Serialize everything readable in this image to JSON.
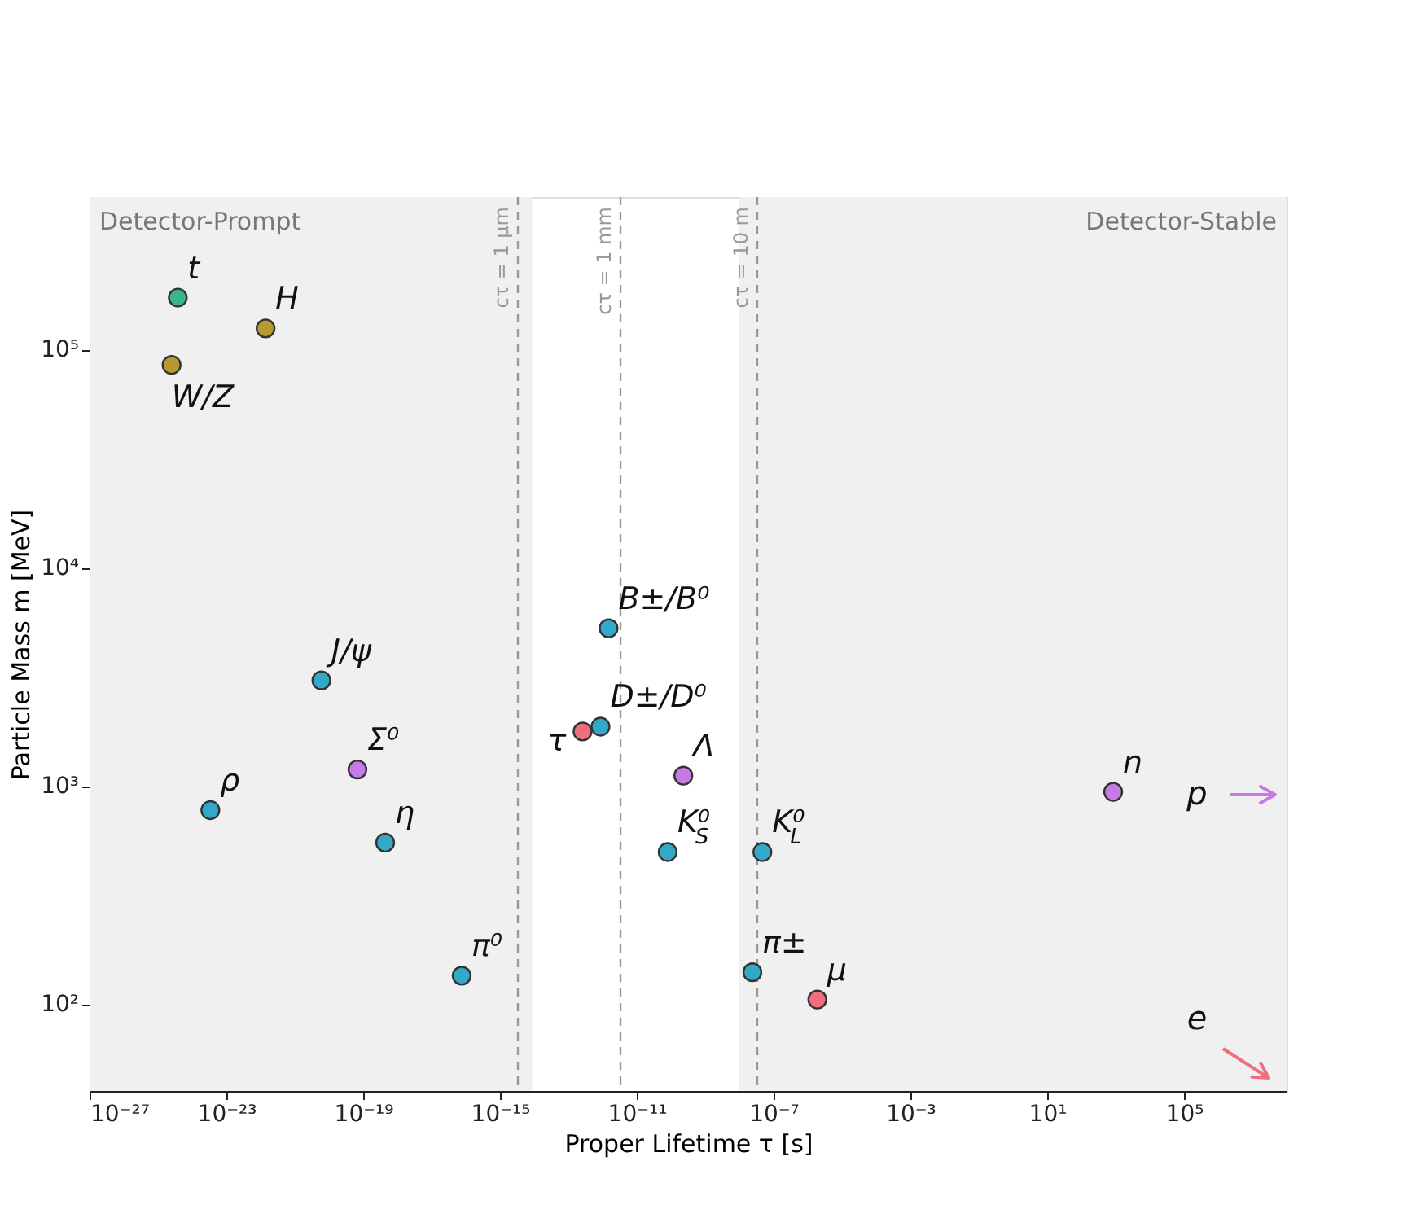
{
  "chart_data": {
    "type": "scatter",
    "xlabel": "Proper Lifetime τ [s]",
    "ylabel": "Particle Mass m [MeV]",
    "log": "xy",
    "xlim": [
      1e-27,
      100000000.0
    ],
    "ylim": [
      40,
      500000
    ],
    "xticks": [
      {
        "value": 1e-27,
        "label": "10⁻²⁷"
      },
      {
        "value": 1e-23,
        "label": "10⁻²³"
      },
      {
        "value": 1e-19,
        "label": "10⁻¹⁹"
      },
      {
        "value": 1e-15,
        "label": "10⁻¹⁵"
      },
      {
        "value": 1e-11,
        "label": "10⁻¹¹"
      },
      {
        "value": 1e-07,
        "label": "10⁻⁷"
      },
      {
        "value": 0.001,
        "label": "10⁻³"
      },
      {
        "value": 10,
        "label": "10¹"
      },
      {
        "value": 100000,
        "label": "10⁵"
      }
    ],
    "yticks": [
      {
        "value": 100,
        "label": "10²"
      },
      {
        "value": 1000,
        "label": "10³"
      },
      {
        "value": 10000,
        "label": "10⁴"
      },
      {
        "value": 100000,
        "label": "10⁵"
      }
    ],
    "grid": false,
    "marker": "circle",
    "series": [
      {
        "name": "t",
        "color": "#3bb58f",
        "x": [
          3.8e-25
        ],
        "values": [
          173000
        ]
      },
      {
        "name": "H",
        "color": "#b59a30",
        "x": [
          1.4e-22
        ],
        "values": [
          125000
        ]
      },
      {
        "name": "W/Z",
        "color": "#b59a30",
        "x": [
          2.5e-25
        ],
        "values": [
          85000
        ]
      },
      {
        "name": "J/ψ",
        "color": "#33a9c9",
        "x": [
          6e-21
        ],
        "values": [
          3050
        ]
      },
      {
        "name": "Σ⁰",
        "color": "#c67ae6",
        "x": [
          6.8e-20
        ],
        "values": [
          1190
        ]
      },
      {
        "name": "ρ",
        "color": "#33a9c9",
        "x": [
          3.4e-24
        ],
        "values": [
          775
        ]
      },
      {
        "name": "η",
        "color": "#33a9c9",
        "x": [
          4.4e-19
        ],
        "values": [
          550
        ]
      },
      {
        "name": "π⁰",
        "color": "#33a9c9",
        "x": [
          7.6e-17
        ],
        "values": [
          135
        ]
      },
      {
        "name": "B±/B⁰",
        "color": "#33a9c9",
        "x": [
          1.5e-12
        ],
        "values": [
          5280
        ]
      },
      {
        "name": "D±/D⁰",
        "color": "#33a9c9",
        "x": [
          8.7e-13
        ],
        "values": [
          1870
        ]
      },
      {
        "name": "τ",
        "color": "#f06e7e",
        "x": [
          2.6e-13
        ],
        "values": [
          1777
        ]
      },
      {
        "name": "Λ",
        "color": "#c67ae6",
        "x": [
          2.3e-10
        ],
        "values": [
          1115
        ]
      },
      {
        "name": "K⁰$_{S}$",
        "color": "#33a9c9",
        "x": [
          8e-11
        ],
        "values": [
          498
        ]
      },
      {
        "name": "K⁰$_{L}$",
        "color": "#33a9c9",
        "x": [
          4.7e-08
        ],
        "values": [
          498
        ]
      },
      {
        "name": "π±",
        "color": "#33a9c9",
        "x": [
          2.4e-08
        ],
        "values": [
          140
        ]
      },
      {
        "name": "μ",
        "color": "#f06e7e",
        "x": [
          1.9e-06
        ],
        "values": [
          105
        ]
      },
      {
        "name": "n",
        "color": "#c67ae6",
        "x": [
          850
        ],
        "values": [
          940
        ]
      }
    ],
    "ref_lines": [
      {
        "axis": "x",
        "value": 3.34e-15,
        "color": "#999999",
        "line_style": "dashed"
      },
      {
        "axis": "x",
        "value": 3.34e-12,
        "color": "#999999",
        "line_style": "dashed"
      },
      {
        "axis": "x",
        "value": 3.34e-08,
        "color": "#999999",
        "line_style": "dashed"
      }
    ],
    "bands": [
      {
        "axis": "x",
        "from": 1e-27,
        "to": 8.7e-15,
        "label": "Detector-Prompt",
        "color": "#f0f0f0"
      },
      {
        "axis": "x",
        "from": 1e-08,
        "to": 100000000.0,
        "label": "Detector-Stable",
        "color": "#f0f0f0"
      }
    ],
    "annotations": [
      "p",
      "e",
      "cτ = 1 μm",
      "cτ = 1 mm",
      "cτ = 10 m"
    ]
  }
}
